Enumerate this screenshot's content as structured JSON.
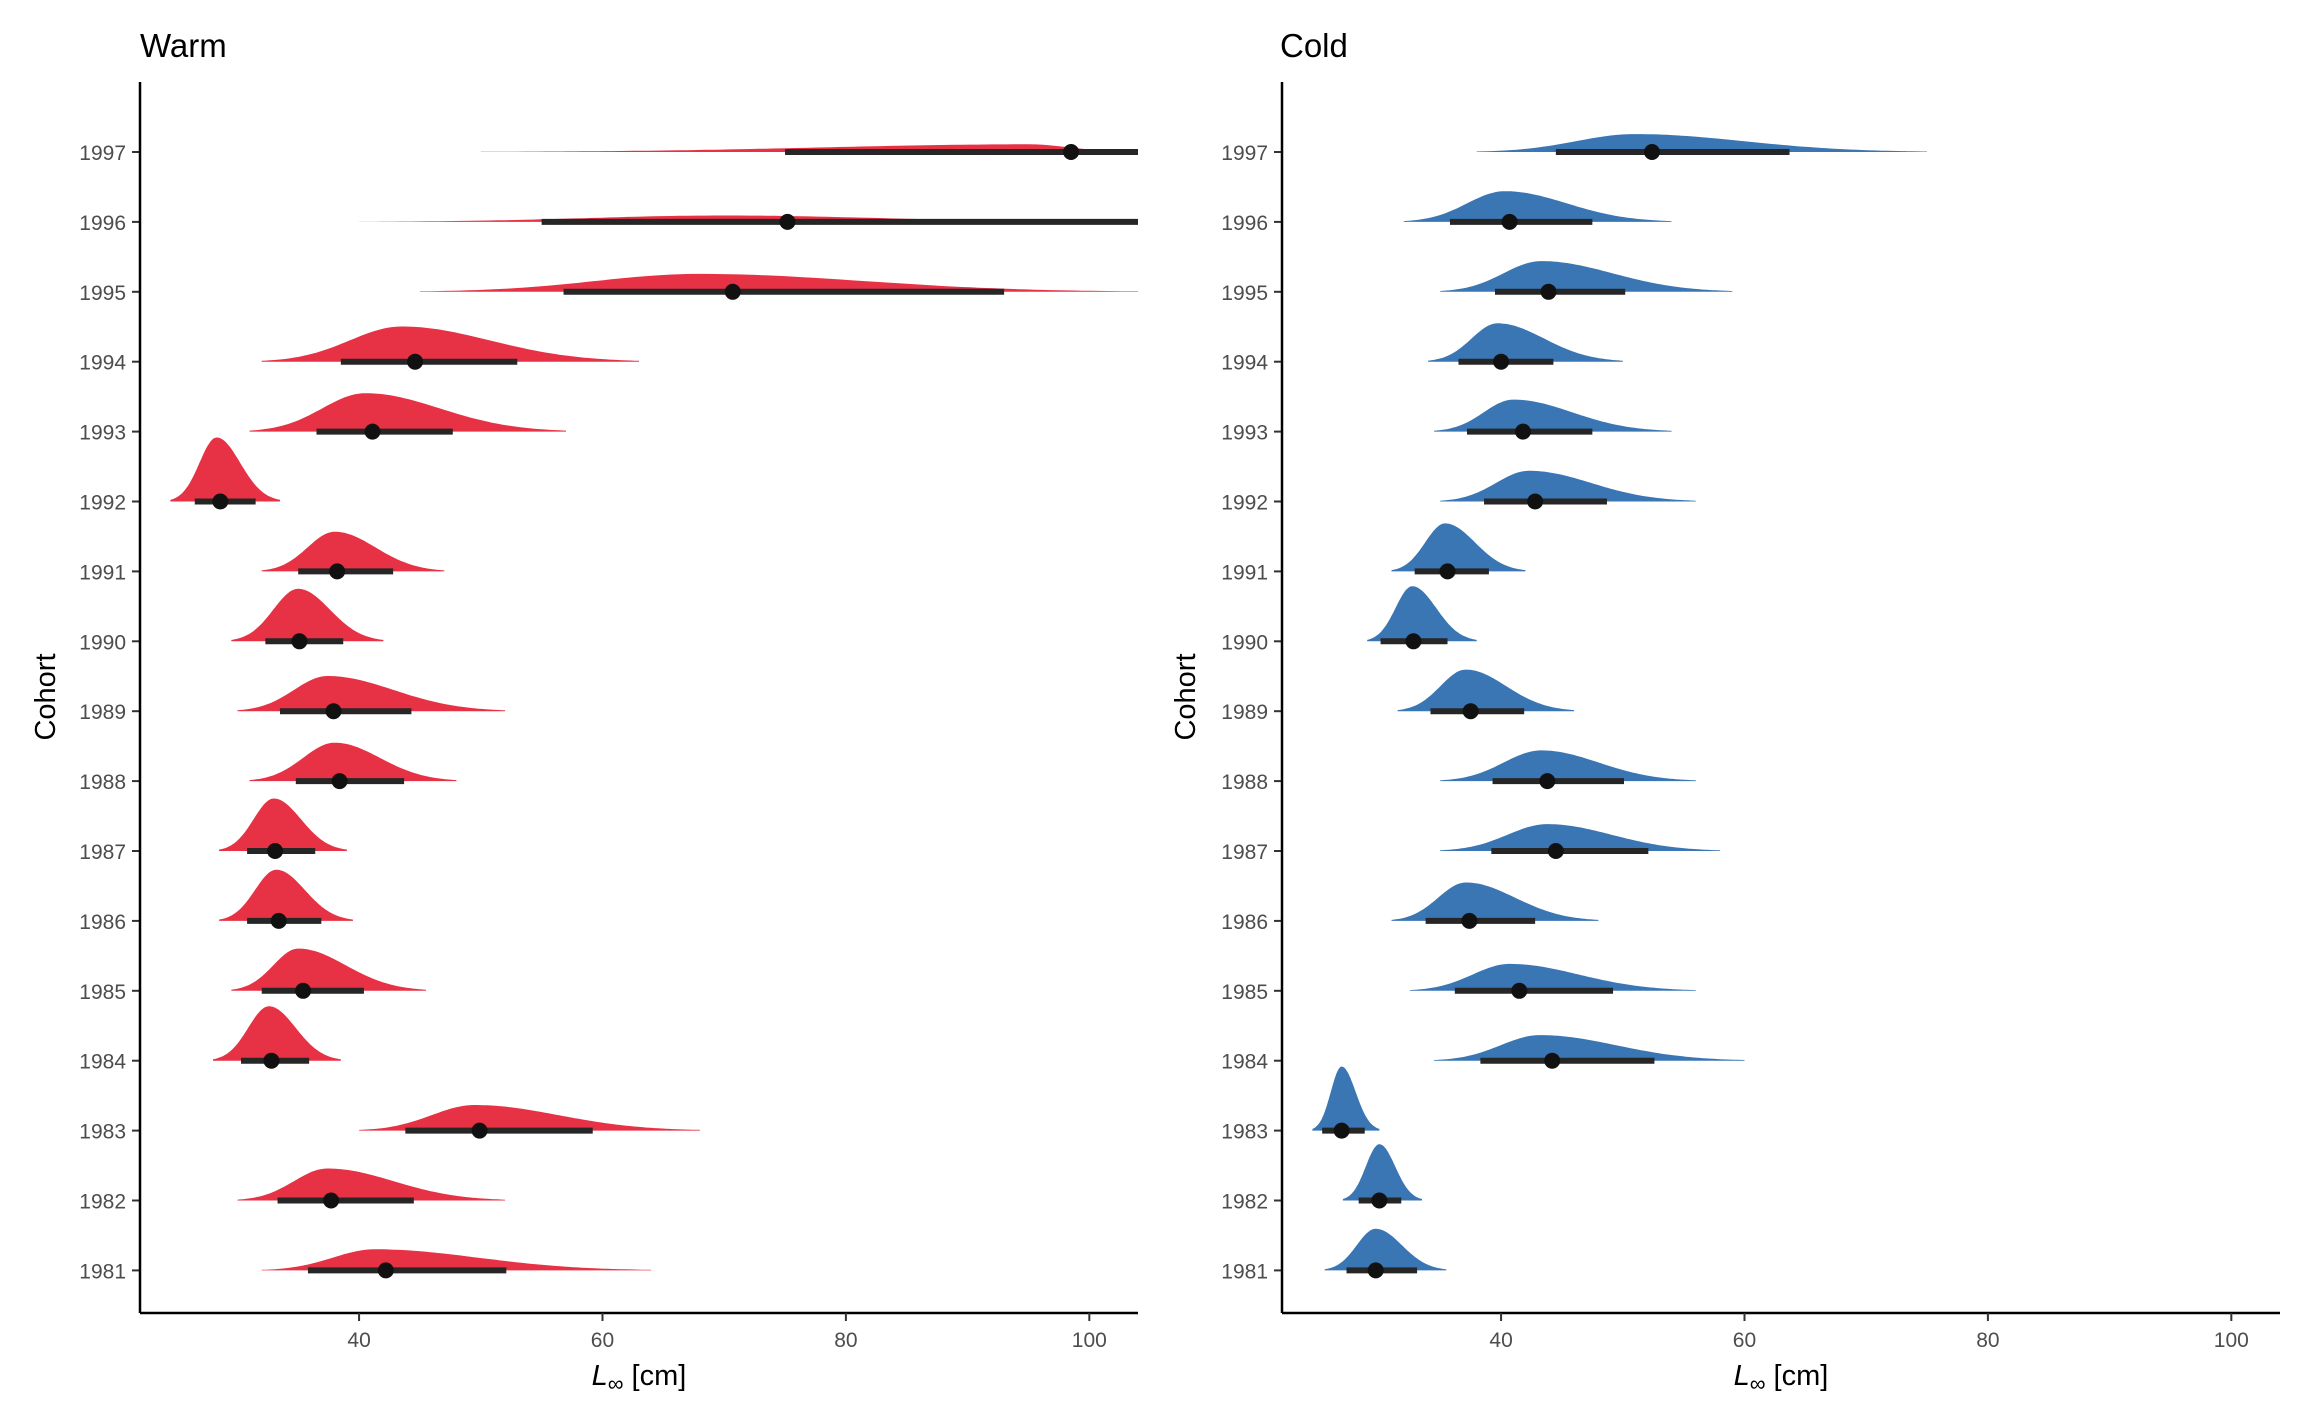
{
  "chart_data": [
    {
      "type": "density-interval",
      "title": "Warm",
      "xlabel_symbol": "L",
      "xlabel_subscript": "∞",
      "xlabel_unit": " [cm]",
      "ylabel": "Cohort",
      "xlim": [
        22,
        104
      ],
      "xticks": [
        40,
        60,
        80,
        100
      ],
      "fill_color": "#e63244",
      "categories": [
        "1997",
        "1996",
        "1995",
        "1994",
        "1993",
        "1992",
        "1991",
        "1990",
        "1989",
        "1988",
        "1987",
        "1986",
        "1985",
        "1984",
        "1983",
        "1982",
        "1981"
      ],
      "medians": [
        98.5,
        75.2,
        70.7,
        44.6,
        41.1,
        28.6,
        38.2,
        35.1,
        37.9,
        38.4,
        33.1,
        33.4,
        35.4,
        32.8,
        49.9,
        37.7,
        42.2
      ],
      "interval_low": [
        75,
        55,
        56.8,
        38.5,
        36.5,
        26.5,
        35,
        32.3,
        33.5,
        34.8,
        30.8,
        30.8,
        32,
        30.3,
        43.8,
        33.3,
        35.8
      ],
      "interval_high": [
        104,
        104,
        93,
        53,
        47.7,
        31.5,
        42.8,
        38.7,
        44.3,
        43.7,
        36.4,
        36.9,
        40.4,
        35.9,
        59.2,
        44.5,
        52.1
      ],
      "density_range_low": [
        50,
        40,
        45,
        32,
        31,
        24.5,
        32,
        29.5,
        30,
        31,
        28.5,
        28.5,
        29.5,
        28,
        40,
        30,
        32
      ],
      "density_range_high": [
        104,
        104,
        104,
        63,
        57,
        33.5,
        47,
        42,
        52,
        48,
        39,
        39.5,
        45.5,
        38.5,
        68,
        52,
        64
      ],
      "density_mode": [
        95,
        70,
        68,
        43.5,
        40.5,
        28.3,
        38,
        35,
        37.4,
        38,
        33,
        33.2,
        35,
        32.6,
        49.5,
        37.4,
        41.3
      ],
      "density_height_rel": [
        0.12,
        0.1,
        0.28,
        0.55,
        0.6,
        1.0,
        0.62,
        0.82,
        0.55,
        0.6,
        0.82,
        0.8,
        0.66,
        0.85,
        0.4,
        0.5,
        0.33
      ]
    },
    {
      "type": "density-interval",
      "title": "Cold",
      "xlabel_symbol": "L",
      "xlabel_subscript": "∞",
      "xlabel_unit": " [cm]",
      "ylabel": "Cohort",
      "xlim": [
        22,
        104
      ],
      "xticks": [
        40,
        60,
        80,
        100
      ],
      "fill_color": "#3a76b3",
      "categories": [
        "1997",
        "1996",
        "1995",
        "1994",
        "1993",
        "1992",
        "1991",
        "1990",
        "1989",
        "1988",
        "1987",
        "1986",
        "1985",
        "1984",
        "1983",
        "1982",
        "1981"
      ],
      "medians": [
        52.4,
        40.7,
        43.9,
        40,
        41.8,
        42.8,
        35.6,
        32.8,
        37.5,
        43.8,
        44.5,
        37.4,
        41.5,
        44.2,
        26.9,
        30,
        29.7
      ],
      "interval_low": [
        44.5,
        35.8,
        39.5,
        36.5,
        37.2,
        38.6,
        32.9,
        30.1,
        34.2,
        39.3,
        39.2,
        33.8,
        36.2,
        38.3,
        25.3,
        28.3,
        27.3
      ],
      "interval_high": [
        63.7,
        47.5,
        50.2,
        44.3,
        47.5,
        48.7,
        39,
        35.6,
        41.9,
        50.1,
        52.1,
        42.8,
        49.2,
        52.6,
        28.8,
        31.8,
        33.1
      ],
      "density_range_low": [
        38,
        32,
        35,
        34,
        34.5,
        35,
        31,
        29,
        31.5,
        35,
        35,
        31,
        32.5,
        34.5,
        24.5,
        27,
        25.5
      ],
      "density_range_high": [
        75,
        54,
        59,
        50,
        54,
        56,
        42,
        38,
        46,
        56,
        58,
        48,
        56,
        60,
        30,
        33.5,
        35.5
      ],
      "density_mode": [
        51,
        40.3,
        43.3,
        39.7,
        41,
        42.3,
        35.4,
        32.7,
        37.1,
        43.3,
        43.8,
        37.1,
        40.7,
        43.2,
        26.9,
        30,
        29.7
      ],
      "density_height_rel": [
        0.28,
        0.48,
        0.48,
        0.6,
        0.5,
        0.48,
        0.75,
        0.86,
        0.65,
        0.48,
        0.42,
        0.6,
        0.42,
        0.4,
        1.0,
        0.88,
        0.65
      ]
    }
  ]
}
